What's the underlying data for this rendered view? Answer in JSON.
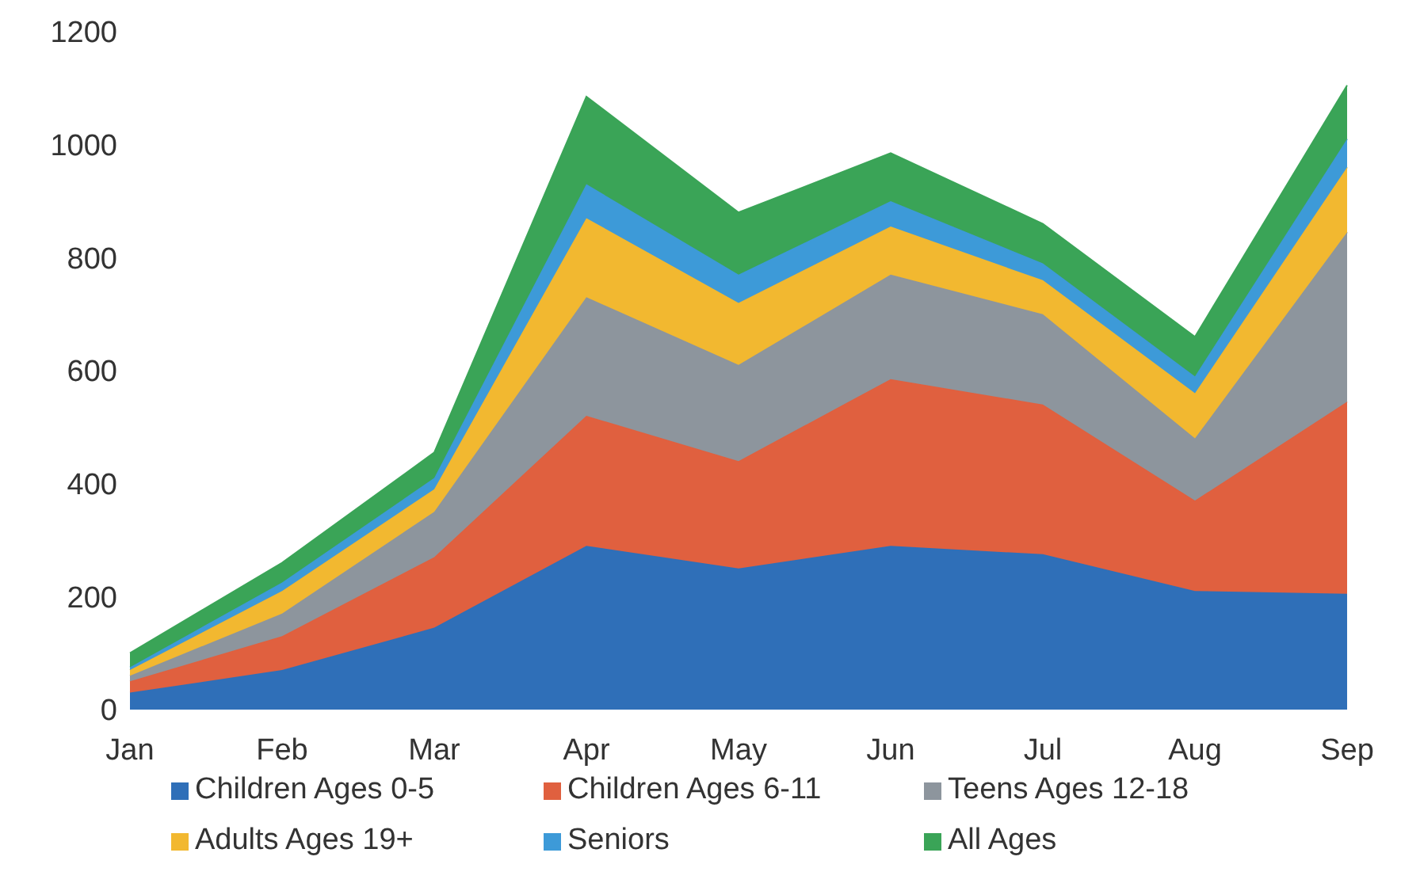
{
  "chart_data": {
    "type": "area",
    "stacked": true,
    "categories": [
      "Jan",
      "Feb",
      "Mar",
      "Apr",
      "May",
      "Jun",
      "Jul",
      "Aug",
      "Sep"
    ],
    "ylim": [
      0,
      1200
    ],
    "yticks": [
      0,
      200,
      400,
      600,
      800,
      1000,
      1200
    ],
    "grid": false,
    "legend": "bottom",
    "series": [
      {
        "name": "Children Ages 0-5",
        "color": "#2f6fb8",
        "values": [
          30,
          70,
          145,
          290,
          250,
          290,
          275,
          210,
          205
        ]
      },
      {
        "name": "Children Ages 6-11",
        "color": "#e0603f",
        "values": [
          20,
          60,
          125,
          230,
          190,
          295,
          265,
          160,
          340
        ]
      },
      {
        "name": "Teens Ages 12-18",
        "color": "#8d959d",
        "values": [
          10,
          40,
          80,
          210,
          170,
          185,
          160,
          110,
          300
        ]
      },
      {
        "name": "Adults Ages 19+",
        "color": "#f2b830",
        "values": [
          10,
          40,
          40,
          140,
          110,
          85,
          60,
          80,
          115
        ]
      },
      {
        "name": "Seniors",
        "color": "#3d9ad8",
        "values": [
          5,
          15,
          20,
          60,
          50,
          45,
          30,
          30,
          50
        ]
      },
      {
        "name": "All Ages",
        "color": "#3aa457",
        "values": [
          25,
          35,
          45,
          155,
          110,
          85,
          70,
          70,
          95
        ]
      }
    ]
  }
}
